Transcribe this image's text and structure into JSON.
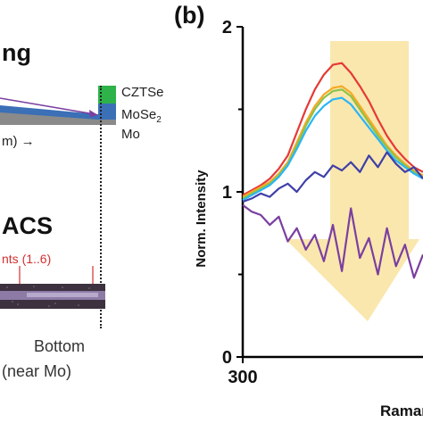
{
  "left": {
    "heading_top": "ng",
    "heading_bottom": "ACS",
    "layers": [
      "CZTSe",
      "MoSe",
      "Mo"
    ],
    "layer_subscript": "2",
    "axis_fragment": "m)",
    "points_label": "nts (1..6)",
    "bottom_label_1": "Bottom",
    "bottom_label_2": "(near Mo)",
    "colors": {
      "czts": "#2db34a",
      "mose2": "#3b6fb6",
      "mo": "#8a8a8a",
      "arrow": "#7b3fa0",
      "red_text": "#d32f2f"
    }
  },
  "chart_data": {
    "type": "line",
    "panel_label": "(b)",
    "ylabel": "Norm. Intensity",
    "xlabel": "Raman",
    "y_ticks": [
      "2",
      "1",
      "0"
    ],
    "x_tick_labels": [
      "300"
    ],
    "ylim": [
      0,
      2
    ],
    "xlim": [
      300,
      340
    ],
    "highlight_color": "#f9e3a0",
    "series": [
      {
        "color": "#e53935",
        "x": [
          300,
          302,
          304,
          306,
          308,
          310,
          312,
          314,
          316,
          318,
          320,
          322,
          324,
          326,
          328,
          330,
          332,
          334,
          336,
          338,
          340
        ],
        "y": [
          0.98,
          1.01,
          1.04,
          1.08,
          1.14,
          1.22,
          1.36,
          1.5,
          1.62,
          1.71,
          1.77,
          1.78,
          1.72,
          1.64,
          1.55,
          1.44,
          1.34,
          1.26,
          1.2,
          1.15,
          1.12
        ]
      },
      {
        "color": "#f9a825",
        "x": [
          300,
          302,
          304,
          306,
          308,
          310,
          312,
          314,
          316,
          318,
          320,
          322,
          324,
          326,
          328,
          330,
          332,
          334,
          336,
          338,
          340
        ],
        "y": [
          0.97,
          1.0,
          1.03,
          1.06,
          1.11,
          1.18,
          1.3,
          1.42,
          1.52,
          1.59,
          1.63,
          1.64,
          1.6,
          1.52,
          1.44,
          1.36,
          1.28,
          1.22,
          1.17,
          1.13,
          1.1
        ]
      },
      {
        "color": "#8bc34a",
        "x": [
          300,
          302,
          304,
          306,
          308,
          310,
          312,
          314,
          316,
          318,
          320,
          322,
          324,
          326,
          328,
          330,
          332,
          334,
          336,
          338,
          340
        ],
        "y": [
          0.96,
          0.99,
          1.02,
          1.05,
          1.1,
          1.17,
          1.28,
          1.4,
          1.5,
          1.57,
          1.61,
          1.62,
          1.58,
          1.5,
          1.42,
          1.34,
          1.27,
          1.21,
          1.16,
          1.12,
          1.09
        ]
      },
      {
        "color": "#29b6f6",
        "x": [
          300,
          302,
          304,
          306,
          308,
          310,
          312,
          314,
          316,
          318,
          320,
          322,
          324,
          326,
          328,
          330,
          332,
          334,
          336,
          338,
          340
        ],
        "y": [
          0.95,
          0.98,
          1.01,
          1.04,
          1.09,
          1.16,
          1.26,
          1.37,
          1.46,
          1.52,
          1.56,
          1.57,
          1.53,
          1.46,
          1.39,
          1.32,
          1.25,
          1.19,
          1.15,
          1.11,
          1.08
        ]
      },
      {
        "color": "#3f3fa8",
        "x": [
          300,
          302,
          304,
          306,
          308,
          310,
          312,
          314,
          316,
          318,
          320,
          322,
          324,
          326,
          328,
          330,
          332,
          334,
          336,
          338,
          340
        ],
        "y": [
          0.94,
          0.96,
          0.99,
          0.97,
          1.02,
          1.05,
          1.0,
          1.07,
          1.12,
          1.09,
          1.16,
          1.13,
          1.18,
          1.12,
          1.22,
          1.15,
          1.24,
          1.17,
          1.12,
          1.15,
          1.08
        ]
      },
      {
        "color": "#7b3fa0",
        "x": [
          300,
          302,
          304,
          306,
          308,
          310,
          312,
          314,
          316,
          318,
          320,
          322,
          324,
          326,
          328,
          330,
          332,
          334,
          336,
          338,
          340
        ],
        "y": [
          0.92,
          0.88,
          0.86,
          0.8,
          0.85,
          0.7,
          0.78,
          0.65,
          0.74,
          0.58,
          0.8,
          0.52,
          0.9,
          0.6,
          0.72,
          0.5,
          0.78,
          0.55,
          0.68,
          0.48,
          0.62
        ]
      }
    ]
  }
}
